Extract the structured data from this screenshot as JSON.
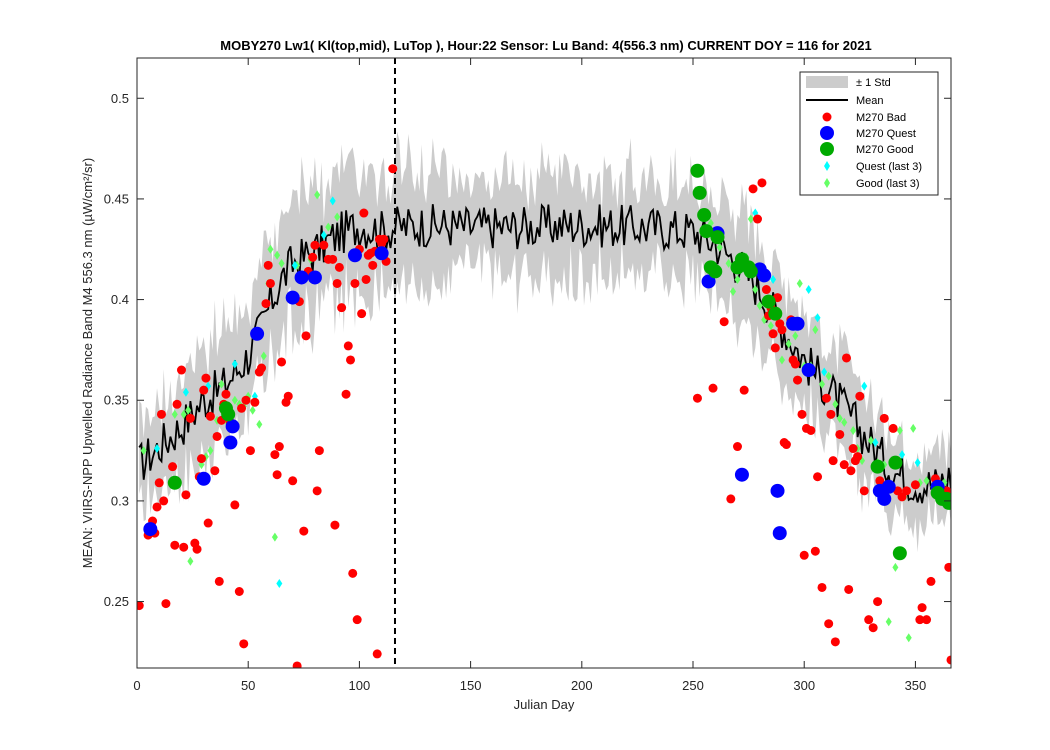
{
  "chart_data": {
    "type": "scatter",
    "title": "MOBY270   Lw1( Kl(top,mid), LuTop ),   Hour:22 Sensor: Lu Band: 4(556.3 nm)   CURRENT DOY = 116 for 2021",
    "xlabel": "Julian Day",
    "ylabel": "MEAN: VIIRS-NPP Upwelled Radiance Band M4 556.3 nm (µW/cm²/sr)",
    "xlim": [
      0,
      366
    ],
    "ylim": [
      0.217,
      0.52
    ],
    "xticks": [
      0,
      50,
      100,
      150,
      200,
      250,
      300,
      350
    ],
    "yticks": [
      0.25,
      0.3,
      0.35,
      0.4,
      0.45,
      0.5
    ],
    "xtick_labels": [
      "0",
      "50",
      "100",
      "150",
      "200",
      "250",
      "300",
      "350"
    ],
    "ytick_labels": [
      "0.25",
      "0.3",
      "0.35",
      "0.4",
      "0.45",
      "0.5"
    ],
    "current_doy": 116,
    "grid": false,
    "legend_position": "top-right",
    "legend": [
      {
        "label": "± 1 Std",
        "kind": "band",
        "color": "#cccccc"
      },
      {
        "label": "Mean",
        "kind": "line",
        "color": "#000000"
      },
      {
        "label": "M270 Bad",
        "kind": "marker",
        "color": "#ff0000"
      },
      {
        "label": "M270 Quest",
        "kind": "marker",
        "color": "#0000ff"
      },
      {
        "label": "M270 Good",
        "kind": "marker",
        "color": "#00aa00"
      },
      {
        "label": "Quest (last 3)",
        "kind": "diamond",
        "color": "#00ffff"
      },
      {
        "label": "Good (last 3)",
        "kind": "diamond",
        "color": "#66ff66"
      }
    ],
    "mean_anchors": [
      [
        1,
        0.318
      ],
      [
        10,
        0.327
      ],
      [
        20,
        0.337
      ],
      [
        30,
        0.35
      ],
      [
        40,
        0.358
      ],
      [
        50,
        0.372
      ],
      [
        55,
        0.384
      ],
      [
        60,
        0.398
      ],
      [
        65,
        0.41
      ],
      [
        70,
        0.418
      ],
      [
        80,
        0.424
      ],
      [
        90,
        0.432
      ],
      [
        100,
        0.437
      ],
      [
        110,
        0.434
      ],
      [
        116,
        0.436
      ],
      [
        130,
        0.437
      ],
      [
        150,
        0.436
      ],
      [
        170,
        0.436
      ],
      [
        200,
        0.437
      ],
      [
        230,
        0.436
      ],
      [
        250,
        0.434
      ],
      [
        260,
        0.428
      ],
      [
        270,
        0.418
      ],
      [
        280,
        0.405
      ],
      [
        290,
        0.387
      ],
      [
        300,
        0.37
      ],
      [
        310,
        0.357
      ],
      [
        320,
        0.343
      ],
      [
        330,
        0.328
      ],
      [
        340,
        0.315
      ],
      [
        350,
        0.309
      ],
      [
        360,
        0.308
      ],
      [
        366,
        0.312
      ]
    ],
    "std_anchors": [
      [
        1,
        0.022
      ],
      [
        30,
        0.026
      ],
      [
        60,
        0.03
      ],
      [
        100,
        0.03
      ],
      [
        150,
        0.025
      ],
      [
        200,
        0.025
      ],
      [
        250,
        0.024
      ],
      [
        280,
        0.026
      ],
      [
        320,
        0.022
      ],
      [
        366,
        0.016
      ]
    ],
    "m270_bad": [
      [
        1,
        0.248
      ],
      [
        5,
        0.283
      ],
      [
        7,
        0.29
      ],
      [
        8,
        0.284
      ],
      [
        9,
        0.297
      ],
      [
        10,
        0.309
      ],
      [
        11,
        0.343
      ],
      [
        12,
        0.3
      ],
      [
        13,
        0.249
      ],
      [
        16,
        0.317
      ],
      [
        17,
        0.278
      ],
      [
        18,
        0.348
      ],
      [
        20,
        0.365
      ],
      [
        21,
        0.277
      ],
      [
        22,
        0.303
      ],
      [
        24,
        0.341
      ],
      [
        26,
        0.279
      ],
      [
        27,
        0.276
      ],
      [
        28,
        0.312
      ],
      [
        29,
        0.321
      ],
      [
        30,
        0.355
      ],
      [
        31,
        0.361
      ],
      [
        32,
        0.289
      ],
      [
        33,
        0.342
      ],
      [
        35,
        0.315
      ],
      [
        36,
        0.332
      ],
      [
        37,
        0.26
      ],
      [
        38,
        0.34
      ],
      [
        39,
        0.348
      ],
      [
        40,
        0.353
      ],
      [
        42,
        0.339
      ],
      [
        44,
        0.298
      ],
      [
        46,
        0.255
      ],
      [
        47,
        0.346
      ],
      [
        48,
        0.229
      ],
      [
        49,
        0.35
      ],
      [
        51,
        0.325
      ],
      [
        53,
        0.349
      ],
      [
        55,
        0.364
      ],
      [
        56,
        0.366
      ],
      [
        58,
        0.398
      ],
      [
        59,
        0.417
      ],
      [
        60,
        0.408
      ],
      [
        62,
        0.323
      ],
      [
        63,
        0.313
      ],
      [
        64,
        0.327
      ],
      [
        65,
        0.369
      ],
      [
        67,
        0.349
      ],
      [
        68,
        0.352
      ],
      [
        70,
        0.31
      ],
      [
        72,
        0.218
      ],
      [
        73,
        0.399
      ],
      [
        75,
        0.285
      ],
      [
        76,
        0.382
      ],
      [
        77,
        0.414
      ],
      [
        79,
        0.421
      ],
      [
        80,
        0.427
      ],
      [
        81,
        0.305
      ],
      [
        82,
        0.325
      ],
      [
        84,
        0.427
      ],
      [
        86,
        0.42
      ],
      [
        88,
        0.42
      ],
      [
        89,
        0.288
      ],
      [
        90,
        0.408
      ],
      [
        91,
        0.416
      ],
      [
        92,
        0.396
      ],
      [
        94,
        0.353
      ],
      [
        95,
        0.377
      ],
      [
        96,
        0.37
      ],
      [
        97,
        0.264
      ],
      [
        98,
        0.408
      ],
      [
        99,
        0.241
      ],
      [
        100,
        0.425
      ],
      [
        101,
        0.393
      ],
      [
        102,
        0.443
      ],
      [
        103,
        0.41
      ],
      [
        104,
        0.422
      ],
      [
        105,
        0.423
      ],
      [
        106,
        0.417
      ],
      [
        107,
        0.424
      ],
      [
        108,
        0.224
      ],
      [
        109,
        0.43
      ],
      [
        110,
        0.428
      ],
      [
        111,
        0.43
      ],
      [
        112,
        0.419
      ],
      [
        115,
        0.465
      ],
      [
        252,
        0.351
      ],
      [
        259,
        0.356
      ],
      [
        264,
        0.389
      ],
      [
        267,
        0.301
      ],
      [
        270,
        0.327
      ],
      [
        273,
        0.355
      ],
      [
        277,
        0.455
      ],
      [
        279,
        0.44
      ],
      [
        281,
        0.458
      ],
      [
        283,
        0.405
      ],
      [
        284,
        0.392
      ],
      [
        285,
        0.396
      ],
      [
        286,
        0.383
      ],
      [
        287,
        0.376
      ],
      [
        288,
        0.401
      ],
      [
        289,
        0.388
      ],
      [
        290,
        0.385
      ],
      [
        291,
        0.329
      ],
      [
        292,
        0.328
      ],
      [
        294,
        0.39
      ],
      [
        295,
        0.37
      ],
      [
        296,
        0.368
      ],
      [
        297,
        0.36
      ],
      [
        299,
        0.343
      ],
      [
        300,
        0.273
      ],
      [
        301,
        0.336
      ],
      [
        303,
        0.335
      ],
      [
        305,
        0.275
      ],
      [
        306,
        0.312
      ],
      [
        308,
        0.257
      ],
      [
        310,
        0.351
      ],
      [
        311,
        0.239
      ],
      [
        312,
        0.343
      ],
      [
        313,
        0.32
      ],
      [
        314,
        0.23
      ],
      [
        316,
        0.333
      ],
      [
        318,
        0.318
      ],
      [
        319,
        0.371
      ],
      [
        320,
        0.256
      ],
      [
        321,
        0.315
      ],
      [
        322,
        0.326
      ],
      [
        323,
        0.32
      ],
      [
        324,
        0.322
      ],
      [
        325,
        0.352
      ],
      [
        327,
        0.305
      ],
      [
        329,
        0.241
      ],
      [
        331,
        0.237
      ],
      [
        333,
        0.25
      ],
      [
        334,
        0.31
      ],
      [
        336,
        0.341
      ],
      [
        338,
        0.307
      ],
      [
        340,
        0.336
      ],
      [
        342,
        0.305
      ],
      [
        344,
        0.302
      ],
      [
        346,
        0.305
      ],
      [
        350,
        0.308
      ],
      [
        352,
        0.241
      ],
      [
        353,
        0.247
      ],
      [
        355,
        0.241
      ],
      [
        357,
        0.26
      ],
      [
        359,
        0.311
      ],
      [
        361,
        0.306
      ],
      [
        362,
        0.303
      ],
      [
        364,
        0.305
      ],
      [
        365,
        0.267
      ],
      [
        366,
        0.221
      ]
    ],
    "m270_quest": [
      [
        6,
        0.286
      ],
      [
        30,
        0.311
      ],
      [
        42,
        0.329
      ],
      [
        43,
        0.337
      ],
      [
        54,
        0.383
      ],
      [
        70,
        0.401
      ],
      [
        74,
        0.411
      ],
      [
        80,
        0.411
      ],
      [
        98,
        0.422
      ],
      [
        110,
        0.423
      ],
      [
        257,
        0.409
      ],
      [
        261,
        0.433
      ],
      [
        272,
        0.313
      ],
      [
        280,
        0.415
      ],
      [
        282,
        0.412
      ],
      [
        288,
        0.305
      ],
      [
        289,
        0.284
      ],
      [
        295,
        0.388
      ],
      [
        297,
        0.388
      ],
      [
        302,
        0.365
      ],
      [
        334,
        0.305
      ],
      [
        336,
        0.301
      ],
      [
        338,
        0.307
      ],
      [
        360,
        0.307
      ]
    ],
    "m270_good": [
      [
        17,
        0.309
      ],
      [
        40,
        0.346
      ],
      [
        41,
        0.343
      ],
      [
        252,
        0.464
      ],
      [
        253,
        0.453
      ],
      [
        255,
        0.442
      ],
      [
        256,
        0.434
      ],
      [
        258,
        0.416
      ],
      [
        260,
        0.414
      ],
      [
        261,
        0.431
      ],
      [
        270,
        0.416
      ],
      [
        272,
        0.42
      ],
      [
        275,
        0.416
      ],
      [
        276,
        0.414
      ],
      [
        284,
        0.399
      ],
      [
        287,
        0.393
      ],
      [
        333,
        0.317
      ],
      [
        341,
        0.319
      ],
      [
        343,
        0.274
      ],
      [
        360,
        0.304
      ],
      [
        362,
        0.301
      ],
      [
        364,
        0.301
      ],
      [
        365,
        0.299
      ]
    ],
    "quest_last3": [
      [
        9,
        0.326
      ],
      [
        22,
        0.354
      ],
      [
        32,
        0.357
      ],
      [
        44,
        0.368
      ],
      [
        53,
        0.352
      ],
      [
        64,
        0.259
      ],
      [
        71,
        0.417
      ],
      [
        84,
        0.432
      ],
      [
        88,
        0.449
      ],
      [
        278,
        0.443
      ],
      [
        286,
        0.41
      ],
      [
        302,
        0.405
      ],
      [
        306,
        0.391
      ],
      [
        309,
        0.364
      ],
      [
        327,
        0.357
      ],
      [
        332,
        0.329
      ],
      [
        344,
        0.323
      ],
      [
        351,
        0.319
      ],
      [
        361,
        0.306
      ]
    ],
    "good_last3": [
      [
        3,
        0.325
      ],
      [
        17,
        0.343
      ],
      [
        21,
        0.343
      ],
      [
        23,
        0.345
      ],
      [
        24,
        0.27
      ],
      [
        29,
        0.318
      ],
      [
        31,
        0.322
      ],
      [
        33,
        0.325
      ],
      [
        36,
        0.34
      ],
      [
        38,
        0.358
      ],
      [
        40,
        0.34
      ],
      [
        44,
        0.35
      ],
      [
        46,
        0.348
      ],
      [
        48,
        0.347
      ],
      [
        50,
        0.352
      ],
      [
        52,
        0.345
      ],
      [
        55,
        0.338
      ],
      [
        57,
        0.372
      ],
      [
        59,
        0.408
      ],
      [
        60,
        0.425
      ],
      [
        62,
        0.282
      ],
      [
        63,
        0.422
      ],
      [
        65,
        0.418
      ],
      [
        72,
        0.417
      ],
      [
        78,
        0.42
      ],
      [
        81,
        0.452
      ],
      [
        86,
        0.436
      ],
      [
        90,
        0.441
      ],
      [
        254,
        0.443
      ],
      [
        258,
        0.438
      ],
      [
        262,
        0.426
      ],
      [
        266,
        0.418
      ],
      [
        268,
        0.404
      ],
      [
        270,
        0.41
      ],
      [
        274,
        0.421
      ],
      [
        276,
        0.44
      ],
      [
        278,
        0.405
      ],
      [
        280,
        0.397
      ],
      [
        282,
        0.39
      ],
      [
        285,
        0.387
      ],
      [
        290,
        0.37
      ],
      [
        293,
        0.378
      ],
      [
        296,
        0.382
      ],
      [
        298,
        0.408
      ],
      [
        300,
        0.367
      ],
      [
        303,
        0.367
      ],
      [
        305,
        0.385
      ],
      [
        308,
        0.358
      ],
      [
        311,
        0.362
      ],
      [
        314,
        0.348
      ],
      [
        316,
        0.341
      ],
      [
        318,
        0.339
      ],
      [
        322,
        0.335
      ],
      [
        324,
        0.326
      ],
      [
        326,
        0.32
      ],
      [
        330,
        0.33
      ],
      [
        333,
        0.319
      ],
      [
        336,
        0.318
      ],
      [
        338,
        0.24
      ],
      [
        341,
        0.267
      ],
      [
        343,
        0.335
      ],
      [
        345,
        0.302
      ],
      [
        347,
        0.232
      ],
      [
        349,
        0.336
      ],
      [
        352,
        0.309
      ],
      [
        355,
        0.31
      ],
      [
        358,
        0.307
      ],
      [
        363,
        0.309
      ],
      [
        366,
        0.298
      ]
    ]
  }
}
